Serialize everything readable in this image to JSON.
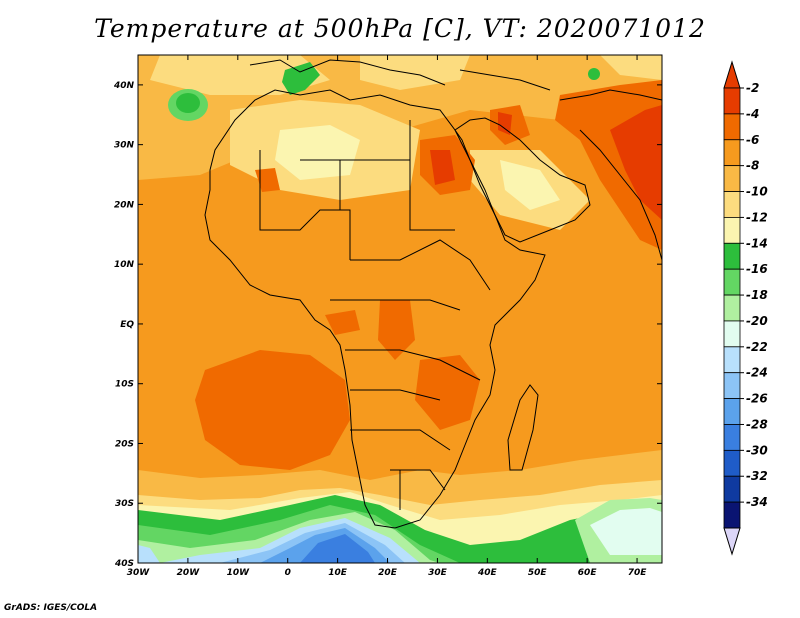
{
  "title": "Temperature at 500hPa [C], VT: 2020071012",
  "footer": "GrADS: IGES/COLA",
  "map": {
    "lon_range": [
      -30,
      75
    ],
    "lat_range": [
      -40,
      45
    ],
    "lon_ticks": [
      {
        "value": -30,
        "label": "30W"
      },
      {
        "value": -20,
        "label": "20W"
      },
      {
        "value": -10,
        "label": "10W"
      },
      {
        "value": 0,
        "label": "0"
      },
      {
        "value": 10,
        "label": "10E"
      },
      {
        "value": 20,
        "label": "20E"
      },
      {
        "value": 30,
        "label": "30E"
      },
      {
        "value": 40,
        "label": "40E"
      },
      {
        "value": 50,
        "label": "50E"
      },
      {
        "value": 60,
        "label": "60E"
      },
      {
        "value": 70,
        "label": "70E"
      }
    ],
    "lat_ticks": [
      {
        "value": 40,
        "label": "40N"
      },
      {
        "value": 30,
        "label": "30N"
      },
      {
        "value": 20,
        "label": "20N"
      },
      {
        "value": 10,
        "label": "10N"
      },
      {
        "value": 0,
        "label": "EQ"
      },
      {
        "value": -10,
        "label": "10S"
      },
      {
        "value": -20,
        "label": "20S"
      },
      {
        "value": -30,
        "label": "30S"
      },
      {
        "value": -40,
        "label": "40S"
      }
    ]
  },
  "colorbar": {
    "levels": [
      "-2",
      "-4",
      "-6",
      "-8",
      "-10",
      "-12",
      "-14",
      "-16",
      "-18",
      "-20",
      "-22",
      "-24",
      "-26",
      "-28",
      "-30",
      "-32",
      "-34"
    ],
    "colors": [
      "#e63c00",
      "#f06a00",
      "#f69a1e",
      "#f9b945",
      "#fcdc7f",
      "#fbf5b0",
      "#2dbe3c",
      "#63d663",
      "#b0f0a0",
      "#e2fdf0",
      "#b8e0fc",
      "#8cc4f6",
      "#5ba2ec",
      "#3a7fe0",
      "#1f5cc8",
      "#0f3aa0",
      "#0a1472"
    ],
    "top_over_color": "#e63c00",
    "bottom_under_color": "#dcd6f8"
  }
}
